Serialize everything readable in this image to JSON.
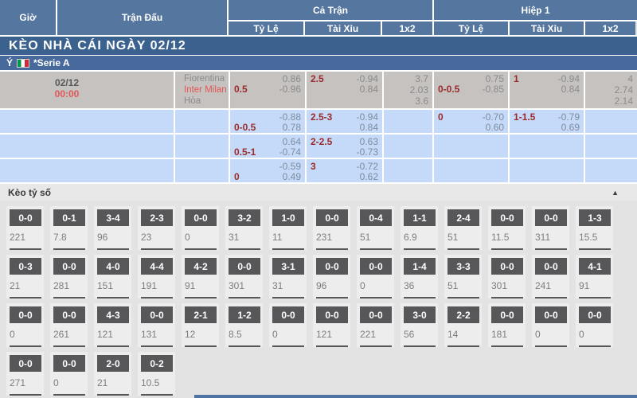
{
  "header": {
    "time": "Giờ",
    "match": "Trận Đấu",
    "full_match": "Cả Trận",
    "first_half": "Hiệp 1",
    "handicap": "Tỷ Lệ",
    "over_under": "Tài Xỉu",
    "one_x_two": "1x2"
  },
  "day_title": "KÈO NHÀ CÁI NGÀY 02/12",
  "league": {
    "country": "Ý",
    "flag_icon": "italy-flag",
    "name": "*Serie A"
  },
  "match": {
    "date": "02/12",
    "time": "00:00",
    "teams": [
      "Fiorentina",
      "Inter Milan",
      "Hòa"
    ]
  },
  "odds_rows": [
    {
      "full_handicap": {
        "top_left": "",
        "top_right": "0.86",
        "bottom_left": "0.5",
        "bottom_right": "-0.96"
      },
      "full_over_under": {
        "top_left": "2.5",
        "top_right": "-0.94",
        "bottom_left": "",
        "bottom_right": "0.84"
      },
      "full_1x2": [
        "3.7",
        "2.03",
        "3.6"
      ],
      "half_handicap": {
        "top_left": "",
        "top_right": "0.75",
        "bottom_left": "0-0.5",
        "bottom_right": "-0.85"
      },
      "half_over_under": {
        "top_left": "1",
        "top_right": "-0.94",
        "bottom_left": "",
        "bottom_right": "0.84"
      },
      "half_1x2": [
        "4",
        "2.74",
        "2.14"
      ]
    },
    {
      "full_handicap": {
        "top_left": "",
        "top_right": "-0.88",
        "bottom_left": "0-0.5",
        "bottom_right": "0.78"
      },
      "full_over_under": {
        "top_left": "2.5-3",
        "top_right": "-0.94",
        "bottom_left": "",
        "bottom_right": "0.84"
      },
      "full_1x2": [],
      "half_handicap": {
        "top_left": "0",
        "top_right": "-0.70",
        "bottom_left": "",
        "bottom_right": "0.60"
      },
      "half_over_under": {
        "top_left": "1-1.5",
        "top_right": "-0.79",
        "bottom_left": "",
        "bottom_right": "0.69"
      },
      "half_1x2": []
    },
    {
      "full_handicap": {
        "top_left": "",
        "top_right": "0.64",
        "bottom_left": "0.5-1",
        "bottom_right": "-0.74"
      },
      "full_over_under": {
        "top_left": "2-2.5",
        "top_right": "0.63",
        "bottom_left": "",
        "bottom_right": "-0.73"
      },
      "full_1x2": [],
      "half_handicap": {
        "top_left": "",
        "top_right": "",
        "bottom_left": "",
        "bottom_right": ""
      },
      "half_over_under": {
        "top_left": "",
        "top_right": "",
        "bottom_left": "",
        "bottom_right": ""
      },
      "half_1x2": []
    },
    {
      "full_handicap": {
        "top_left": "",
        "top_right": "-0.59",
        "bottom_left": "0",
        "bottom_right": "0.49"
      },
      "full_over_under": {
        "top_left": "3",
        "top_right": "-0.72",
        "bottom_left": "",
        "bottom_right": "0.62"
      },
      "full_1x2": [],
      "half_handicap": {
        "top_left": "",
        "top_right": "",
        "bottom_left": "",
        "bottom_right": ""
      },
      "half_over_under": {
        "top_left": "",
        "top_right": "",
        "bottom_left": "",
        "bottom_right": ""
      },
      "half_1x2": []
    }
  ],
  "score_section": {
    "title": "Kèo tỷ số",
    "collapse_icon": "▲",
    "rows": [
      [
        {
          "score": "0-0",
          "odds": "221"
        },
        {
          "score": "0-1",
          "odds": "7.8"
        },
        {
          "score": "3-4",
          "odds": "96"
        },
        {
          "score": "2-3",
          "odds": "23"
        },
        {
          "score": "0-0",
          "odds": "0"
        },
        {
          "score": "3-2",
          "odds": "31"
        },
        {
          "score": "1-0",
          "odds": "11"
        },
        {
          "score": "0-0",
          "odds": "231"
        },
        {
          "score": "0-4",
          "odds": "51"
        },
        {
          "score": "1-1",
          "odds": "6.9"
        },
        {
          "score": "2-4",
          "odds": "51"
        },
        {
          "score": "0-0",
          "odds": "11.5"
        },
        {
          "score": "0-0",
          "odds": "311"
        },
        {
          "score": "1-3",
          "odds": "15.5"
        }
      ],
      [
        {
          "score": "0-3",
          "odds": "21"
        },
        {
          "score": "0-0",
          "odds": "281"
        },
        {
          "score": "4-0",
          "odds": "151"
        },
        {
          "score": "4-4",
          "odds": "191"
        },
        {
          "score": "4-2",
          "odds": "91"
        },
        {
          "score": "0-0",
          "odds": "301"
        },
        {
          "score": "3-1",
          "odds": "31"
        },
        {
          "score": "0-0",
          "odds": "96"
        },
        {
          "score": "0-0",
          "odds": "0"
        },
        {
          "score": "1-4",
          "odds": "36"
        },
        {
          "score": "3-3",
          "odds": "51"
        },
        {
          "score": "0-0",
          "odds": "301"
        },
        {
          "score": "0-0",
          "odds": "241"
        },
        {
          "score": "4-1",
          "odds": "91"
        }
      ],
      [
        {
          "score": "0-0",
          "odds": "0"
        },
        {
          "score": "0-0",
          "odds": "261"
        },
        {
          "score": "4-3",
          "odds": "121"
        },
        {
          "score": "0-0",
          "odds": "131"
        },
        {
          "score": "2-1",
          "odds": "12"
        },
        {
          "score": "1-2",
          "odds": "8.5"
        },
        {
          "score": "0-0",
          "odds": "0"
        },
        {
          "score": "0-0",
          "odds": "121"
        },
        {
          "score": "0-0",
          "odds": "221"
        },
        {
          "score": "3-0",
          "odds": "56"
        },
        {
          "score": "2-2",
          "odds": "14"
        },
        {
          "score": "0-0",
          "odds": "181"
        },
        {
          "score": "0-0",
          "odds": "0"
        },
        {
          "score": "0-0",
          "odds": "0"
        }
      ],
      [
        {
          "score": "0-0",
          "odds": "271"
        },
        {
          "score": "0-0",
          "odds": "0"
        },
        {
          "score": "2-0",
          "odds": "21"
        },
        {
          "score": "0-2",
          "odds": "10.5"
        }
      ]
    ]
  },
  "colors": {
    "header_blue": "#54769f",
    "title_blue": "#3b628f",
    "league_blue": "#48699b",
    "row_gray": "#c6c2c0",
    "row_blue": "#c5daf8",
    "accent_red": "#e05757",
    "handicap_red": "#9b2b2b",
    "score_box_dark": "#57575a"
  }
}
